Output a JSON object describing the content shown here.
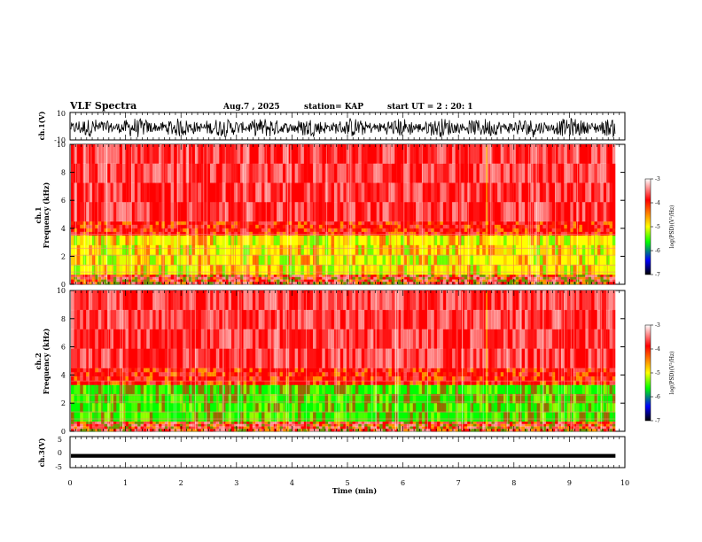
{
  "chart_data": {
    "type": "heatmap",
    "header": {
      "title": "VLF Spectra",
      "date": "Aug.7 , 2025",
      "station": "station= KAP",
      "start": "start UT = 2 : 20: 1"
    },
    "x_axis": {
      "label": "Time (min)",
      "range": [
        0,
        10
      ],
      "ticks": [
        "0",
        "1",
        "2",
        "3",
        "4",
        "5",
        "6",
        "7",
        "8",
        "9",
        "10"
      ]
    },
    "waveform_top": {
      "ylabel": "ch.1(V)",
      "ylim": [
        -10,
        10
      ],
      "ticks": [
        "10",
        "-10"
      ],
      "color": "#000000"
    },
    "spectrogram_ch1": {
      "ylabel_channel": "ch.1",
      "ylabel": "Frequency (kHz)",
      "ylim": [
        0,
        10
      ],
      "ticks": [
        "0",
        "2",
        "4",
        "6",
        "8",
        "10"
      ],
      "data_end_min": 9.83,
      "spike_min": 7.5,
      "bands": [
        {
          "from_khz": 0.0,
          "to_khz": 0.7,
          "level": "mixed"
        },
        {
          "from_khz": 0.7,
          "to_khz": 3.5,
          "level": "yellow-green"
        },
        {
          "from_khz": 3.5,
          "to_khz": 4.5,
          "level": "red"
        },
        {
          "from_khz": 4.5,
          "to_khz": 10.0,
          "level": "red-white"
        }
      ]
    },
    "spectrogram_ch2": {
      "ylabel_channel": "ch.2",
      "ylabel": "Frequency (kHz)",
      "ylim": [
        0,
        10
      ],
      "ticks": [
        "0",
        "2",
        "4",
        "6",
        "8",
        "10"
      ],
      "data_end_min": 9.83,
      "spike_min": 7.5,
      "bands": [
        {
          "from_khz": 0.0,
          "to_khz": 0.7,
          "level": "mixed"
        },
        {
          "from_khz": 0.7,
          "to_khz": 3.3,
          "level": "green"
        },
        {
          "from_khz": 3.3,
          "to_khz": 4.5,
          "level": "red"
        },
        {
          "from_khz": 4.5,
          "to_khz": 10.0,
          "level": "red-white"
        }
      ]
    },
    "waveform_bottom": {
      "ylabel": "ch.3(V)",
      "ylim": [
        -5,
        5
      ],
      "ticks": [
        "5",
        "0",
        "-5"
      ],
      "color": "#000000"
    },
    "colorbar": {
      "label": "log(PSD)(V²/Hz)",
      "range": [
        -7,
        -3
      ],
      "ticks": [
        "-3",
        "-4",
        "-5",
        "-6",
        "-7"
      ],
      "colors": [
        "#ffffff",
        "#ff0000",
        "#ffff00",
        "#00ff00",
        "#0000ff",
        "#000000"
      ]
    }
  }
}
